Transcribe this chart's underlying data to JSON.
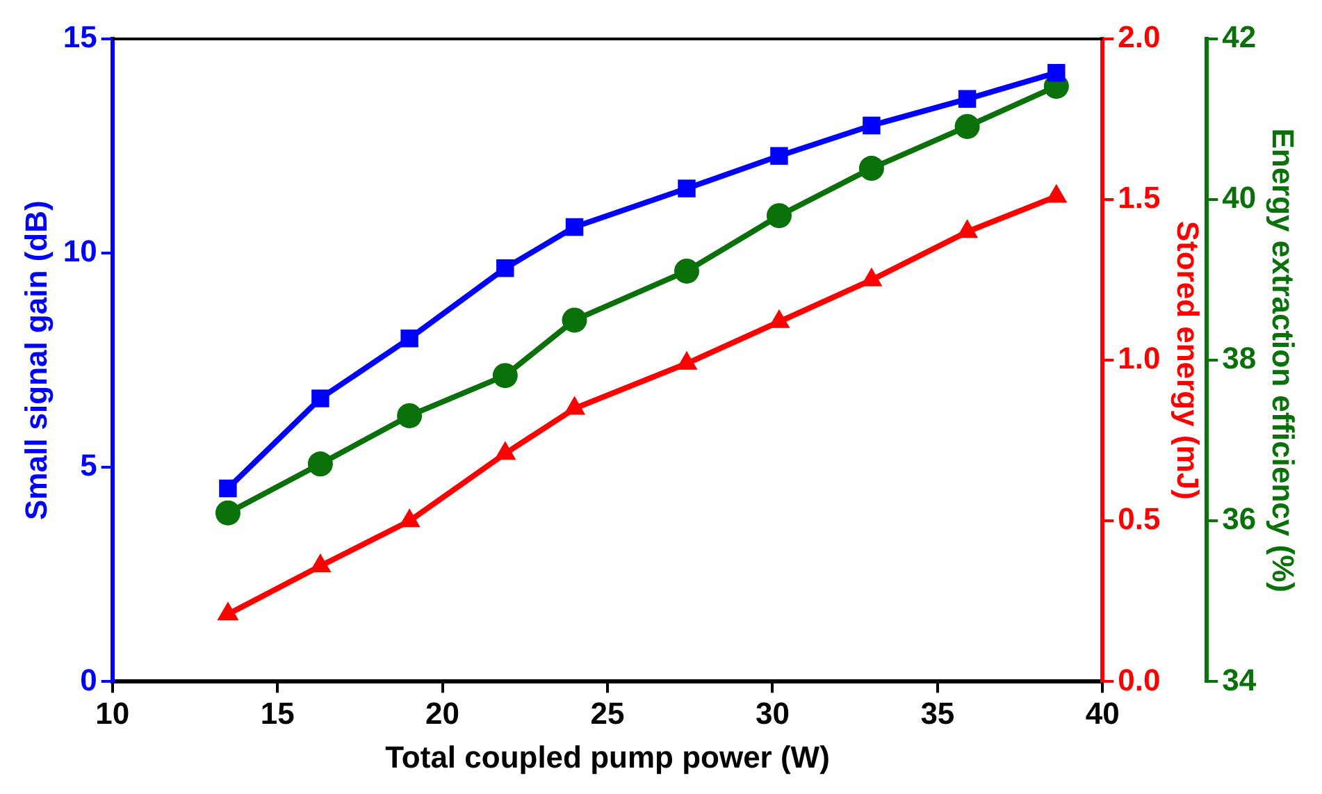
{
  "chart_data": {
    "type": "line",
    "xlabel": "Total coupled pump power (W)",
    "ylabel": "Small signal gain (dB)",
    "y2label": "Stored energy (mJ)",
    "y3label": "Energy extraction efficiency (%)",
    "x": [
      13.5,
      16.3,
      19.0,
      21.9,
      24.0,
      27.4,
      30.2,
      33.0,
      35.9,
      38.6
    ],
    "xlim": [
      10,
      40
    ],
    "xticks": [
      10,
      15,
      20,
      25,
      30,
      35,
      40
    ],
    "ylim": [
      0,
      15
    ],
    "yticks": [
      0,
      5,
      10,
      15
    ],
    "y2lim": [
      0,
      2
    ],
    "y2ticks": [
      {
        "value": 0,
        "label": "0.0"
      },
      {
        "value": 0.5,
        "label": "0.5"
      },
      {
        "value": 1,
        "label": "1.0"
      },
      {
        "value": 1.5,
        "label": "1.5"
      },
      {
        "value": 2,
        "label": "2.0"
      }
    ],
    "y3lim": [
      34,
      42
    ],
    "y3ticks": [
      34,
      36,
      38,
      40,
      42
    ],
    "grid": false,
    "legend": false,
    "line_style": "solid",
    "series": [
      {
        "color": "#0000ff",
        "marker": "square",
        "values": [
          4.51,
          6.61,
          8.01,
          9.65,
          10.61,
          11.51,
          12.27,
          12.98,
          13.6,
          14.21
        ]
      },
      {
        "color": "#ff0000",
        "marker": "triangle",
        "axis": "y2",
        "values": [
          0.21,
          0.36,
          0.5,
          0.71,
          0.85,
          0.99,
          1.12,
          1.25,
          1.4,
          1.51
        ]
      },
      {
        "color": "#0a700a",
        "marker": "circle",
        "axis": "y3",
        "values": [
          36.1,
          36.71,
          37.31,
          37.81,
          38.5,
          39.11,
          39.8,
          40.39,
          40.91,
          41.41
        ]
      }
    ]
  }
}
